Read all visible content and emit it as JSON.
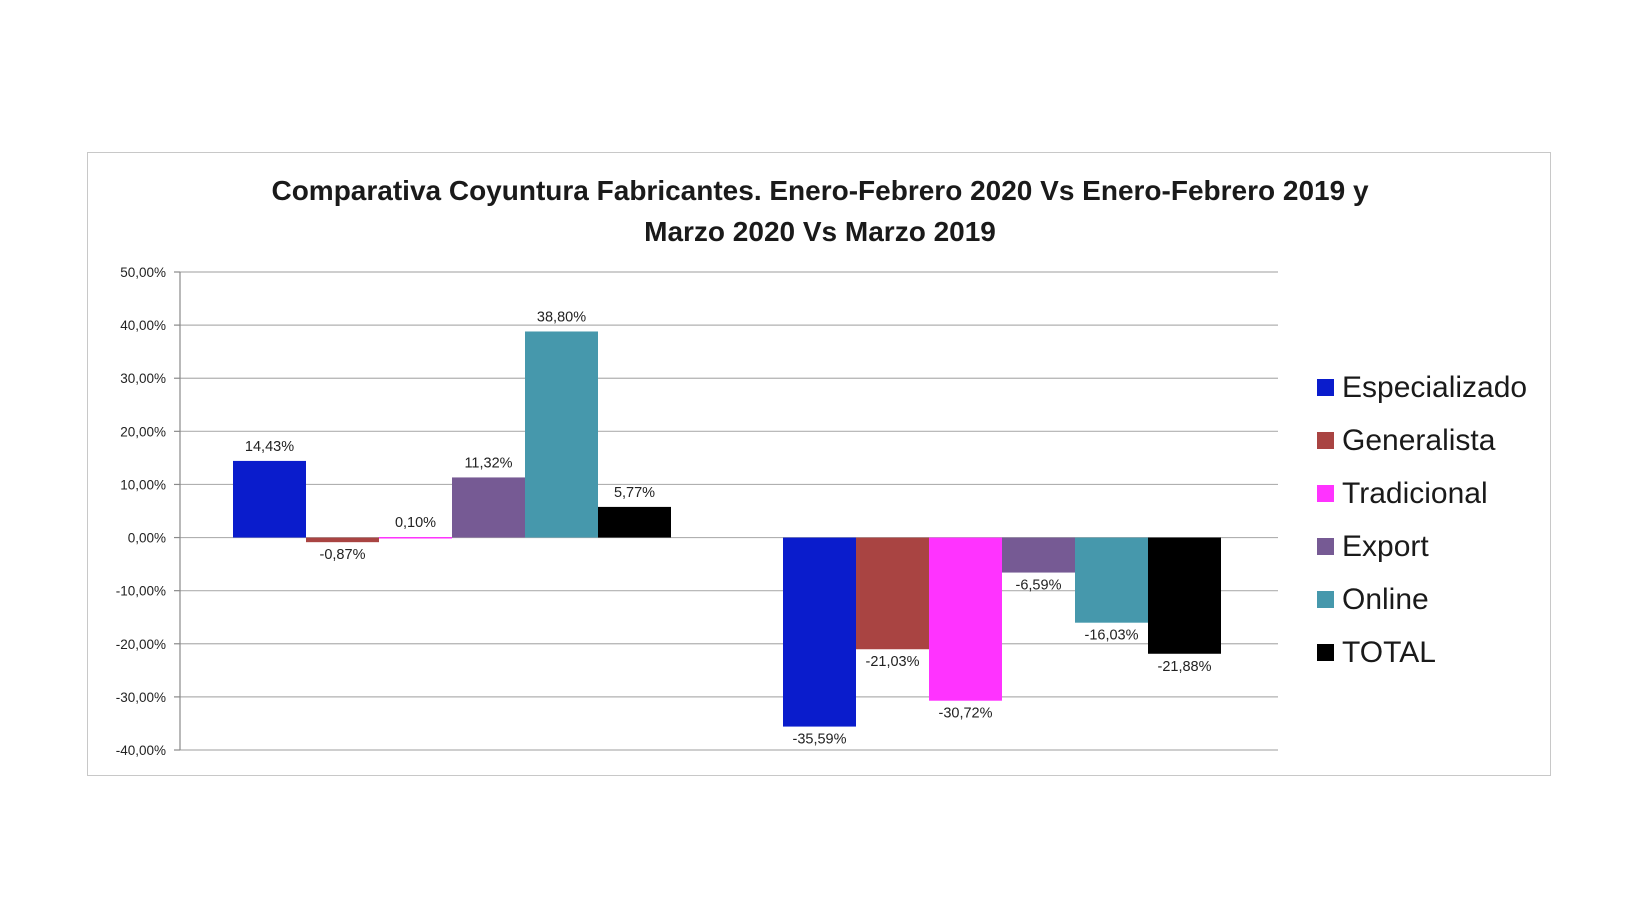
{
  "chart_data": {
    "type": "bar",
    "title_line1": "Comparativa Coyuntura Fabricantes. Enero-Febrero 2020 Vs Enero-Febrero 2019 y",
    "title_line2": "Marzo 2020 Vs Marzo 2019",
    "xlabel": "",
    "ylabel": "",
    "ylim": [
      -40,
      50
    ],
    "y_ticks": [
      50,
      40,
      30,
      20,
      10,
      0,
      -10,
      -20,
      -30,
      -40
    ],
    "y_tick_labels": [
      "50,00%",
      "40,00%",
      "30,00%",
      "20,00%",
      "10,00%",
      "0,00%",
      "-10,00%",
      "-20,00%",
      "-30,00%",
      "-40,00%"
    ],
    "categories": [
      "",
      ""
    ],
    "grid": true,
    "legend_position": "right",
    "series": [
      {
        "name": "Especializado",
        "color": "#0a1ccc",
        "values": [
          14.43,
          -35.59
        ],
        "labels": [
          "14,43%",
          "-35,59%"
        ]
      },
      {
        "name": "Generalista",
        "color": "#a94442",
        "values": [
          -0.87,
          -21.03
        ],
        "labels": [
          "-0,87%",
          "-21,03%"
        ]
      },
      {
        "name": "Tradicional",
        "color": "#ff33ff",
        "values": [
          0.1,
          -30.72
        ],
        "labels": [
          "0,10%",
          "-30,72%"
        ]
      },
      {
        "name": "Export",
        "color": "#765a94",
        "values": [
          11.32,
          -6.59
        ],
        "labels": [
          "11,32%",
          "-6,59%"
        ]
      },
      {
        "name": "Online",
        "color": "#4698ac",
        "values": [
          38.8,
          -16.03
        ],
        "labels": [
          "38,80%",
          "-16,03%"
        ]
      },
      {
        "name": "TOTAL",
        "color": "#000000",
        "values": [
          5.77,
          -21.88
        ],
        "labels": [
          "5,77%",
          "-21,88%"
        ]
      }
    ]
  }
}
